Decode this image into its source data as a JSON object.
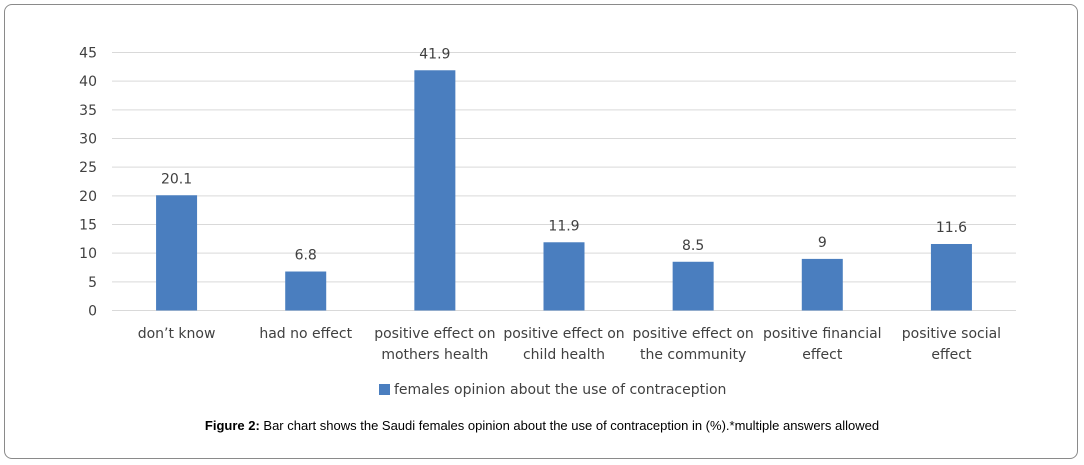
{
  "chart_data": {
    "type": "bar",
    "categories": [
      [
        "don’t know"
      ],
      [
        "had no effect"
      ],
      [
        "positive effect on",
        "mothers health"
      ],
      [
        "positive effect on",
        "child health"
      ],
      [
        "positive effect on",
        "the community"
      ],
      [
        "positive financial",
        "effect"
      ],
      [
        "positive social",
        "effect"
      ]
    ],
    "series": [
      {
        "name": "females opinion about the use of contraception",
        "values": [
          20.1,
          6.8,
          41.9,
          11.9,
          8.5,
          9,
          11.6
        ],
        "value_labels": [
          "20.1",
          "6.8",
          "41.9",
          "11.9",
          "8.5",
          "9",
          "11.6"
        ],
        "color": "#4a7ebf"
      }
    ],
    "ylim": [
      0,
      45
    ],
    "yticks": [
      "0",
      "5",
      "10",
      "15",
      "20",
      "25",
      "30",
      "35",
      "40",
      "45"
    ],
    "grid": true,
    "legend": "bottom"
  },
  "caption": {
    "label": "Figure 2:",
    "text": " Bar chart shows the Saudi females opinion about the use of contraception in (%).*multiple answers allowed"
  },
  "colors": {
    "bar": "#4a7ebf",
    "grid": "#d9d9d9",
    "text": "#404040"
  }
}
